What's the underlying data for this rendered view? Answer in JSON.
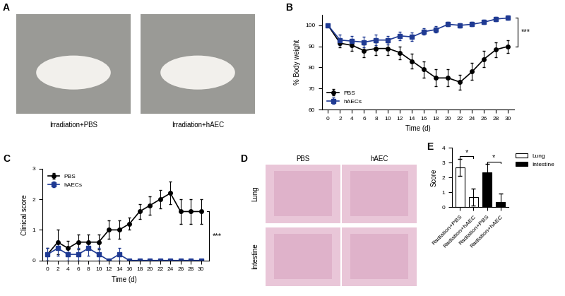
{
  "chart_data": [
    {
      "type": "line",
      "title": "B",
      "xlabel": "Time (d)",
      "ylabel": "% Body weight",
      "x": [
        0,
        2,
        4,
        6,
        8,
        10,
        12,
        14,
        16,
        18,
        20,
        22,
        24,
        26,
        28,
        30
      ],
      "series": [
        {
          "name": "PBS",
          "color": "#000000",
          "marker": "circle",
          "line_style": "solid",
          "values": [
            100,
            91.5,
            90.5,
            88,
            89,
            89,
            87,
            83,
            79,
            75,
            75,
            73,
            78,
            84,
            88.5,
            90
          ],
          "errors": [
            0,
            2,
            2.5,
            3,
            3,
            3,
            3,
            3.5,
            4,
            4,
            4,
            3.5,
            4,
            4,
            3.5,
            3
          ]
        },
        {
          "name": "hAECs",
          "color": "#1f3a93",
          "marker": "square",
          "line_style": "solid",
          "values": [
            100,
            93,
            92.5,
            92,
            93,
            93,
            95,
            94.5,
            97,
            98,
            100.5,
            100,
            100.5,
            101.5,
            103,
            103.5
          ],
          "errors": [
            0,
            2.5,
            2.5,
            2.5,
            2.5,
            2,
            2,
            2,
            1.5,
            1.5,
            1,
            1,
            1,
            1,
            1,
            1
          ]
        }
      ],
      "xlim": [
        -1,
        31
      ],
      "xticks": [
        0,
        2,
        4,
        6,
        8,
        10,
        12,
        14,
        16,
        18,
        20,
        22,
        24,
        26,
        28,
        30
      ],
      "ylim": [
        60,
        105
      ],
      "yticks": [
        60,
        70,
        80,
        90,
        100
      ],
      "legend": "lower left",
      "annotations": [
        {
          "text": "***"
        }
      ]
    },
    {
      "type": "line",
      "title": "C",
      "xlabel": "Time (d)",
      "ylabel": "Clinical score",
      "x": [
        0,
        2,
        4,
        6,
        8,
        10,
        12,
        14,
        16,
        18,
        20,
        22,
        24,
        26,
        28,
        30
      ],
      "series": [
        {
          "name": "PBS",
          "color": "#000000",
          "marker": "circle",
          "line_style": "solid",
          "values": [
            0.2,
            0.6,
            0.4,
            0.6,
            0.6,
            0.6,
            1.0,
            1.0,
            1.2,
            1.6,
            1.8,
            2.0,
            2.2,
            1.6,
            1.6,
            1.6
          ],
          "errors": [
            0.2,
            0.4,
            0.24,
            0.24,
            0.24,
            0.24,
            0.3,
            0.3,
            0.2,
            0.24,
            0.3,
            0.3,
            0.37,
            0.4,
            0.4,
            0.4
          ]
        },
        {
          "name": "hAECs",
          "color": "#1f3a93",
          "marker": "square",
          "line_style": "solid",
          "values": [
            0.2,
            0.4,
            0.2,
            0.2,
            0.4,
            0.2,
            0,
            0.2,
            0,
            0,
            0,
            0,
            0,
            0,
            0,
            0
          ],
          "errors": [
            0.2,
            0.24,
            0.2,
            0.2,
            0.24,
            0.2,
            0,
            0.2,
            0,
            0,
            0,
            0,
            0,
            0,
            0,
            0
          ]
        }
      ],
      "xlim": [
        -1,
        31
      ],
      "xticks": [
        0,
        2,
        4,
        6,
        8,
        10,
        12,
        14,
        16,
        18,
        20,
        22,
        24,
        26,
        28,
        30
      ],
      "ylim": [
        0,
        3
      ],
      "yticks": [
        0,
        1,
        2,
        3
      ],
      "legend": "upper left",
      "annotations": [
        {
          "text": "***"
        }
      ]
    },
    {
      "type": "bar",
      "title": "E",
      "ylabel": "Score",
      "categories": [
        "Radiation+PBS",
        "Radiation+hAEC",
        "Radiation+PBS",
        "Radiation+hAEC"
      ],
      "series": [
        {
          "name": "Lung",
          "color": "#ffffff",
          "values": [
            2.7,
            0.67,
            null,
            null
          ],
          "errors": [
            0.58,
            0.58,
            null,
            null
          ]
        },
        {
          "name": "Intestine",
          "color": "#000000",
          "values": [
            null,
            null,
            2.33,
            0.33
          ],
          "errors": [
            null,
            null,
            0.6,
            0.6
          ]
        }
      ],
      "ylim": [
        0,
        4
      ],
      "yticks": [
        0,
        1,
        2,
        3,
        4
      ],
      "legend": "right",
      "annotations": [
        {
          "text": "*"
        },
        {
          "text": "*"
        }
      ]
    }
  ],
  "images": [
    {
      "title": "A",
      "captions": [
        "Irradiation+PBS",
        "Irradiation+hAEC"
      ]
    },
    {
      "title": "D",
      "columns": [
        "PBS",
        "hAEC"
      ],
      "rows": [
        "Lung",
        "Intestine"
      ]
    }
  ]
}
